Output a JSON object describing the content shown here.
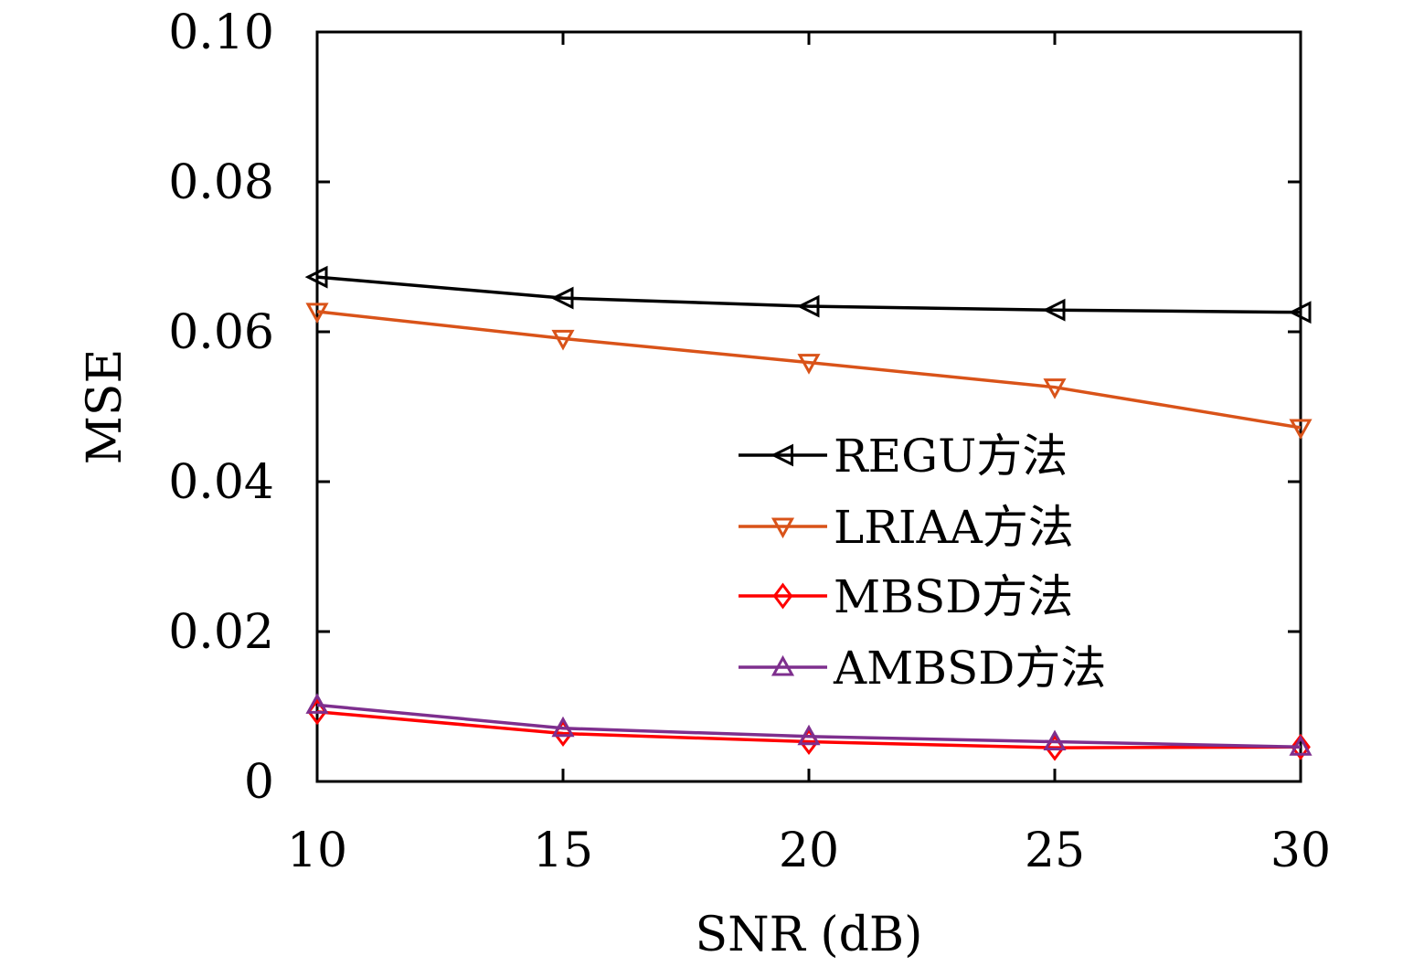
{
  "chart_data": {
    "type": "line",
    "title": "",
    "xlabel": "SNR (dB)",
    "ylabel": "MSE",
    "x": [
      10,
      15,
      20,
      25,
      30
    ],
    "xlim": [
      10,
      30
    ],
    "ylim": [
      0,
      0.1
    ],
    "xticks": [
      "10",
      "15",
      "20",
      "25",
      "30"
    ],
    "yticks": [
      "0",
      "0.02",
      "0.04",
      "0.06",
      "0.08",
      "0.10"
    ],
    "ytick_values": [
      0,
      0.02,
      0.04,
      0.06,
      0.08,
      0.1
    ],
    "grid": false,
    "legend_position": "center-right",
    "series": [
      {
        "name": "REGU方法",
        "color": "#000000",
        "marker": "triangle-left",
        "values": [
          0.0673,
          0.0645,
          0.0634,
          0.0629,
          0.0626
        ]
      },
      {
        "name": "LRIAA方法",
        "color": "#d95319",
        "marker": "triangle-down",
        "values": [
          0.0627,
          0.0591,
          0.0559,
          0.0526,
          0.0472
        ]
      },
      {
        "name": "MBSD方法",
        "color": "#ff0000",
        "marker": "diamond",
        "values": [
          0.0093,
          0.0064,
          0.0053,
          0.0045,
          0.0046
        ]
      },
      {
        "name": "AMBSD方法",
        "color": "#7e2f8e",
        "marker": "triangle-up",
        "values": [
          0.0102,
          0.0071,
          0.006,
          0.0053,
          0.0046
        ]
      }
    ]
  }
}
